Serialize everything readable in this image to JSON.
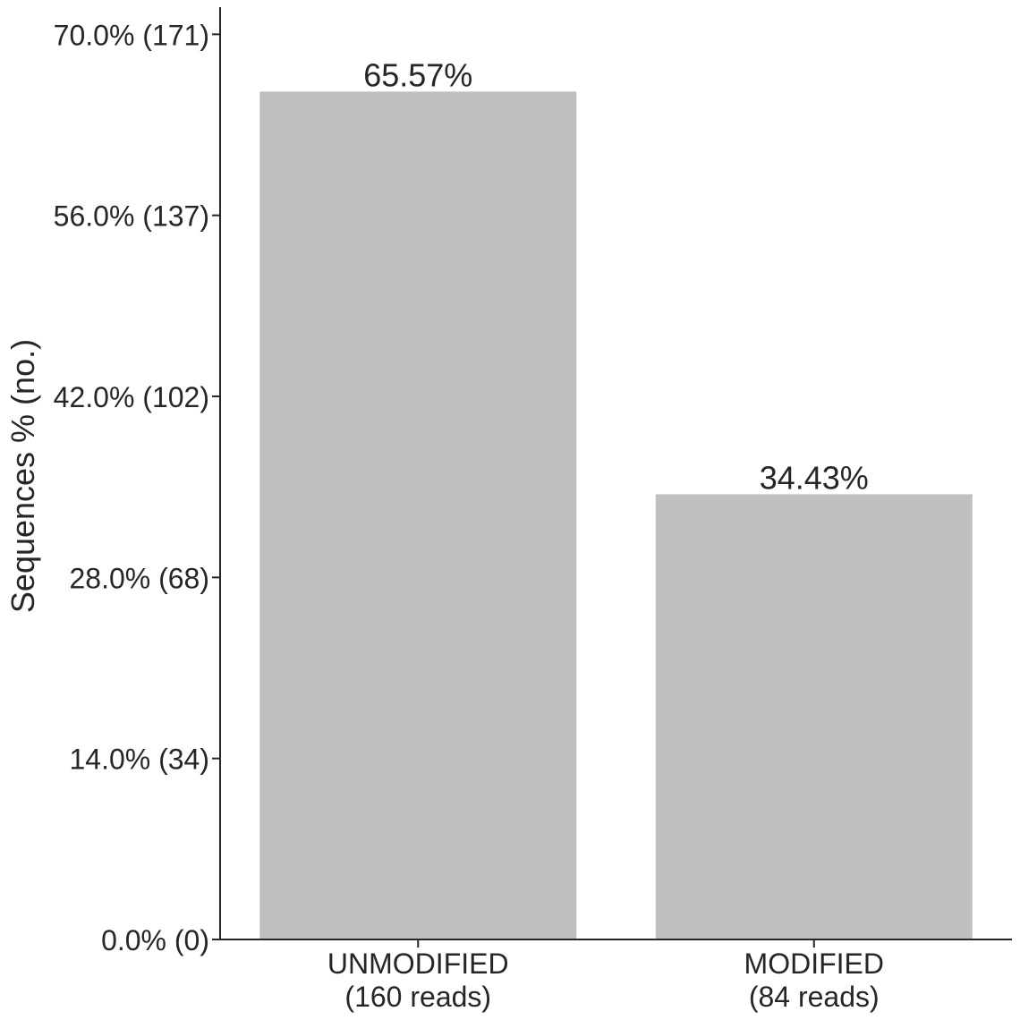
{
  "chart_data": {
    "type": "bar",
    "ylabel": "Sequences % (no.)",
    "ylim": [
      0,
      72.1
    ],
    "y_ticks": [
      {
        "value": 0,
        "label": "0.0% (0)"
      },
      {
        "value": 14,
        "label": "14.0% (34)"
      },
      {
        "value": 28,
        "label": "28.0% (68)"
      },
      {
        "value": 42,
        "label": "42.0% (102)"
      },
      {
        "value": 56,
        "label": "56.0% (137)"
      },
      {
        "value": 70,
        "label": "70.0% (171)"
      }
    ],
    "categories": [
      {
        "line1": "UNMODIFIED",
        "line2": "(160 reads)"
      },
      {
        "line1": "MODIFIED",
        "line2": "(84 reads)"
      }
    ],
    "values": [
      65.57,
      34.43
    ],
    "bar_labels": [
      "65.57%",
      "34.43%"
    ],
    "bar_color": "#bfbfbf",
    "axis_color": "#262626",
    "grid": false,
    "legend": "none"
  }
}
